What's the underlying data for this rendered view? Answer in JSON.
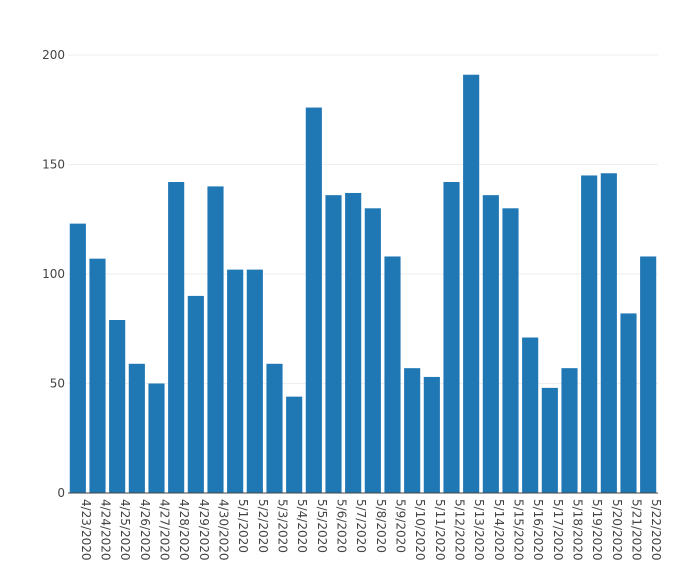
{
  "chart_data": {
    "type": "bar",
    "title": "",
    "xlabel": "",
    "ylabel": "",
    "ylim": [
      0,
      200
    ],
    "yticks": [
      0,
      50,
      100,
      150,
      200
    ],
    "grid": true,
    "bar_color": "#1f77b4",
    "categories": [
      "4/23/2020",
      "4/24/2020",
      "4/25/2020",
      "4/26/2020",
      "4/27/2020",
      "4/28/2020",
      "4/29/2020",
      "4/30/2020",
      "5/1/2020",
      "5/2/2020",
      "5/3/2020",
      "5/4/2020",
      "5/5/2020",
      "5/6/2020",
      "5/7/2020",
      "5/8/2020",
      "5/9/2020",
      "5/10/2020",
      "5/11/2020",
      "5/12/2020",
      "5/13/2020",
      "5/14/2020",
      "5/15/2020",
      "5/16/2020",
      "5/17/2020",
      "5/18/2020",
      "5/19/2020",
      "5/20/2020",
      "5/21/2020",
      "5/22/2020"
    ],
    "values": [
      123,
      107,
      79,
      59,
      50,
      142,
      90,
      140,
      102,
      102,
      59,
      44,
      176,
      136,
      137,
      130,
      108,
      57,
      53,
      142,
      191,
      136,
      130,
      71,
      48,
      57,
      145,
      146,
      82,
      108
    ]
  }
}
